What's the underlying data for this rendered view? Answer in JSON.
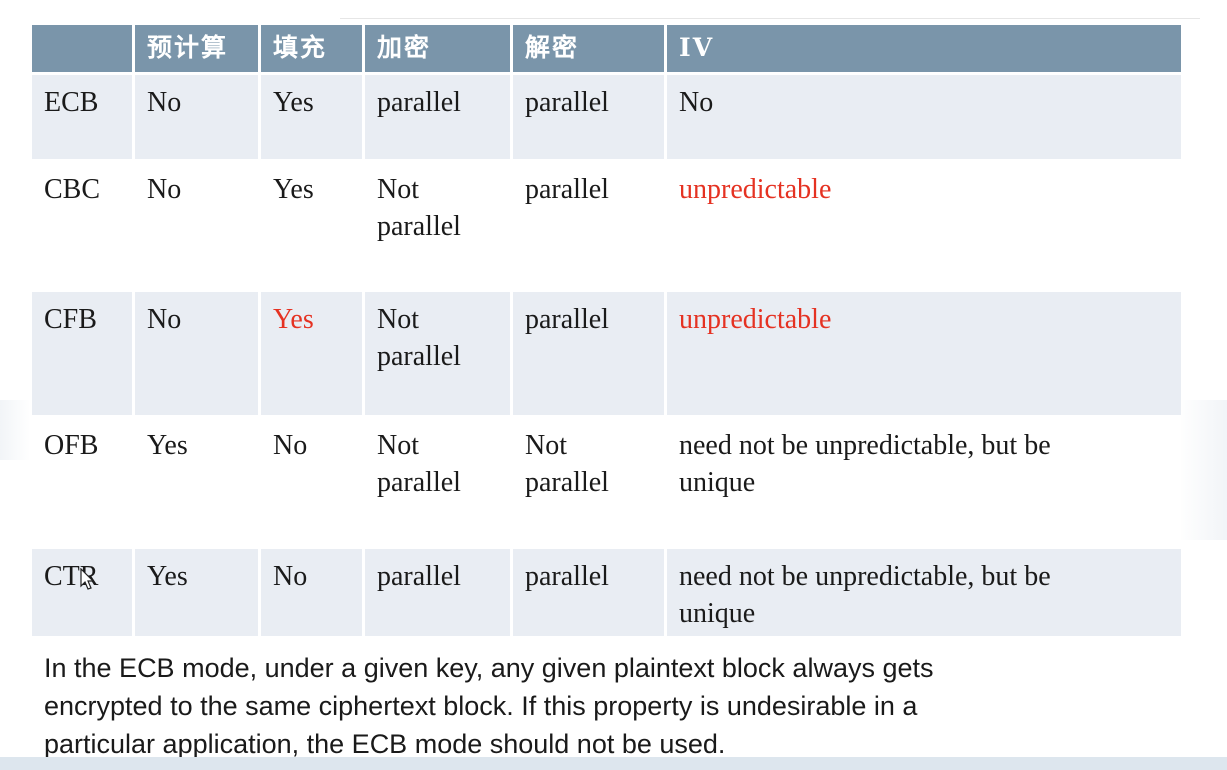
{
  "table": {
    "headers": [
      "",
      "预计算",
      "填充",
      "加密",
      "解密",
      "IV"
    ],
    "rows": [
      {
        "mode": "ECB",
        "precompute": "No",
        "padding": "Yes",
        "encrypt_l1": "parallel",
        "encrypt_l2": "",
        "decrypt_l1": "parallel",
        "decrypt_l2": "",
        "iv_l1": "No",
        "iv_l2": ""
      },
      {
        "mode": "CBC",
        "precompute": "No",
        "padding": "Yes",
        "encrypt_l1": "Not",
        "encrypt_l2": "parallel",
        "decrypt_l1": "parallel",
        "decrypt_l2": "",
        "iv_l1": "unpredictable",
        "iv_l2": ""
      },
      {
        "mode": "CFB",
        "precompute": "No",
        "padding": "Yes",
        "encrypt_l1": "Not",
        "encrypt_l2": "parallel",
        "decrypt_l1": "parallel",
        "decrypt_l2": "",
        "iv_l1": "unpredictable",
        "iv_l2": ""
      },
      {
        "mode": "OFB",
        "precompute": "Yes",
        "padding": "No",
        "encrypt_l1": "Not",
        "encrypt_l2": "parallel",
        "decrypt_l1": "Not",
        "decrypt_l2": "parallel",
        "iv_l1": "need not be unpredictable, but be",
        "iv_l2": "unique"
      },
      {
        "mode": "CTR",
        "precompute": "Yes",
        "padding": "No",
        "encrypt_l1": "parallel",
        "encrypt_l2": "",
        "decrypt_l1": "parallel",
        "decrypt_l2": "",
        "iv_l1": "need not be unpredictable, but be",
        "iv_l2": "unique"
      }
    ]
  },
  "note": {
    "line1": "In the ECB mode, under a given key, any given plaintext block always gets",
    "line2": "encrypted to the same ciphertext block. If this property is undesirable in a",
    "line3": "particular application, the ECB mode should not be used."
  },
  "colors": {
    "header_bg": "#7a95aa",
    "stripe_bg": "#e9edf3",
    "highlight": "#e53222"
  }
}
